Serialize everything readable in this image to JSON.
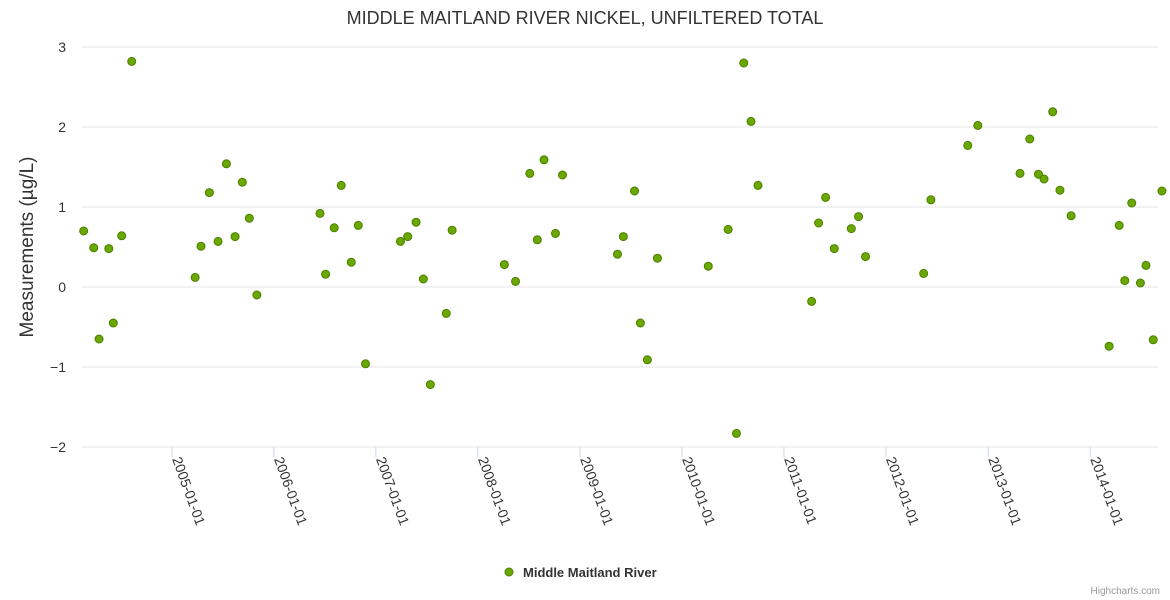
{
  "chart_data": {
    "type": "scatter",
    "title": "MIDDLE MAITLAND RIVER NICKEL, UNFILTERED TOTAL",
    "xlabel": "",
    "ylabel": "Measurements (µg/L)",
    "ylim": [
      -2,
      3
    ],
    "yticks": [
      -2,
      -1,
      0,
      1,
      2,
      3
    ],
    "ytick_labels": [
      "−2",
      "−1",
      "0",
      "1",
      "2",
      "3"
    ],
    "xlim": [
      "2004-02-14",
      "2014-09-01"
    ],
    "xtick_dates": [
      "2005-01-01",
      "2006-01-01",
      "2007-01-01",
      "2008-01-01",
      "2009-01-01",
      "2010-01-01",
      "2011-01-01",
      "2012-01-01",
      "2013-01-01",
      "2014-01-01"
    ],
    "series": [
      {
        "name": "Middle Maitland River",
        "color": "#6aa800",
        "points": [
          {
            "x": "2004-02-20",
            "y": 0.7
          },
          {
            "x": "2004-03-27",
            "y": 0.49
          },
          {
            "x": "2004-04-15",
            "y": -0.65
          },
          {
            "x": "2004-05-20",
            "y": 0.48
          },
          {
            "x": "2004-06-05",
            "y": -0.45
          },
          {
            "x": "2004-07-05",
            "y": 0.64
          },
          {
            "x": "2004-08-10",
            "y": 2.82
          },
          {
            "x": "2005-03-25",
            "y": 0.12
          },
          {
            "x": "2005-04-15",
            "y": 0.51
          },
          {
            "x": "2005-05-15",
            "y": 1.18
          },
          {
            "x": "2005-06-15",
            "y": 0.57
          },
          {
            "x": "2005-07-15",
            "y": 1.54
          },
          {
            "x": "2005-08-15",
            "y": 0.63
          },
          {
            "x": "2005-09-10",
            "y": 1.31
          },
          {
            "x": "2005-10-05",
            "y": 0.86
          },
          {
            "x": "2005-11-01",
            "y": -0.1
          },
          {
            "x": "2006-06-15",
            "y": 0.92
          },
          {
            "x": "2006-07-05",
            "y": 0.16
          },
          {
            "x": "2006-08-05",
            "y": 0.74
          },
          {
            "x": "2006-08-30",
            "y": 1.27
          },
          {
            "x": "2006-10-05",
            "y": 0.31
          },
          {
            "x": "2006-10-30",
            "y": 0.77
          },
          {
            "x": "2006-11-25",
            "y": -0.96
          },
          {
            "x": "2007-03-30",
            "y": 0.57
          },
          {
            "x": "2007-04-25",
            "y": 0.63
          },
          {
            "x": "2007-05-25",
            "y": 0.81
          },
          {
            "x": "2007-06-20",
            "y": 0.1
          },
          {
            "x": "2007-07-15",
            "y": -1.22
          },
          {
            "x": "2007-09-10",
            "y": -0.33
          },
          {
            "x": "2007-10-01",
            "y": 0.71
          },
          {
            "x": "2008-04-05",
            "y": 0.28
          },
          {
            "x": "2008-05-15",
            "y": 0.07
          },
          {
            "x": "2008-07-05",
            "y": 1.42
          },
          {
            "x": "2008-08-01",
            "y": 0.59
          },
          {
            "x": "2008-08-25",
            "y": 1.59
          },
          {
            "x": "2008-10-05",
            "y": 0.67
          },
          {
            "x": "2008-10-30",
            "y": 1.4
          },
          {
            "x": "2009-05-15",
            "y": 0.41
          },
          {
            "x": "2009-06-05",
            "y": 0.63
          },
          {
            "x": "2009-07-15",
            "y": 1.2
          },
          {
            "x": "2009-08-05",
            "y": -0.45
          },
          {
            "x": "2009-08-30",
            "y": -0.91
          },
          {
            "x": "2009-10-05",
            "y": 0.36
          },
          {
            "x": "2010-04-05",
            "y": 0.26
          },
          {
            "x": "2010-06-15",
            "y": 0.72
          },
          {
            "x": "2010-07-15",
            "y": -1.83
          },
          {
            "x": "2010-08-10",
            "y": 2.8
          },
          {
            "x": "2010-09-05",
            "y": 2.07
          },
          {
            "x": "2010-09-30",
            "y": 1.27
          },
          {
            "x": "2011-04-10",
            "y": -0.18
          },
          {
            "x": "2011-05-05",
            "y": 0.8
          },
          {
            "x": "2011-05-30",
            "y": 1.12
          },
          {
            "x": "2011-06-30",
            "y": 0.48
          },
          {
            "x": "2011-08-30",
            "y": 0.73
          },
          {
            "x": "2011-09-25",
            "y": 0.88
          },
          {
            "x": "2011-10-20",
            "y": 0.38
          },
          {
            "x": "2012-05-15",
            "y": 0.17
          },
          {
            "x": "2012-06-10",
            "y": 1.09
          },
          {
            "x": "2012-10-20",
            "y": 1.77
          },
          {
            "x": "2012-11-25",
            "y": 2.02
          },
          {
            "x": "2013-04-25",
            "y": 1.42
          },
          {
            "x": "2013-05-30",
            "y": 1.85
          },
          {
            "x": "2013-06-30",
            "y": 1.41
          },
          {
            "x": "2013-07-20",
            "y": 1.35
          },
          {
            "x": "2013-08-20",
            "y": 2.19
          },
          {
            "x": "2013-09-15",
            "y": 1.21
          },
          {
            "x": "2013-10-25",
            "y": 0.89
          },
          {
            "x": "2014-03-10",
            "y": -0.74
          },
          {
            "x": "2014-04-15",
            "y": 0.77
          },
          {
            "x": "2014-05-05",
            "y": 0.08
          },
          {
            "x": "2014-05-30",
            "y": 1.05
          },
          {
            "x": "2014-06-30",
            "y": 0.05
          },
          {
            "x": "2014-07-20",
            "y": 0.27
          },
          {
            "x": "2014-08-15",
            "y": -0.66
          },
          {
            "x": "2014-09-15",
            "y": 1.2
          }
        ]
      }
    ],
    "legend": {
      "position": "bottom-center",
      "label": "Middle Maitland River"
    },
    "credits": "Highcharts.com",
    "grid": true
  }
}
